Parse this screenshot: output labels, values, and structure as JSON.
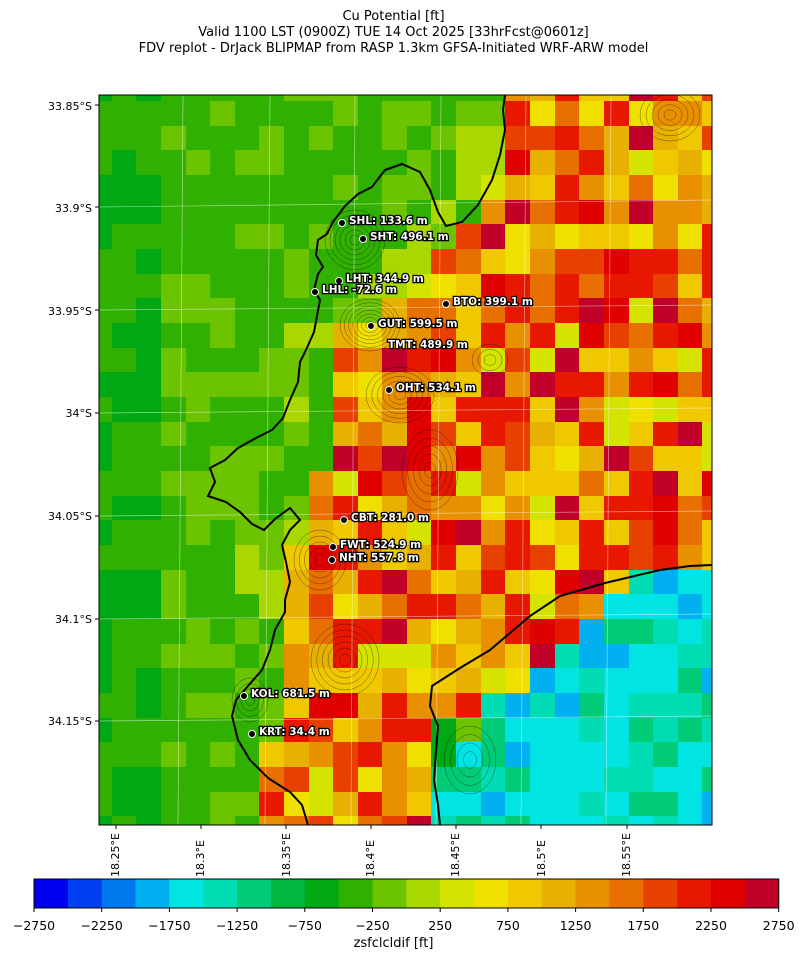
{
  "titles": {
    "line1": "Cu Potential [ft]",
    "line2": "Valid 1100 LST (0900Z) TUE 14 Oct 2025 [33hrFcst@0601z]",
    "line3": "FDV replot - DrJack BLIPMAP from RASP 1.3km GFSA-Initiated WRF-ARW model"
  },
  "map": {
    "lat_labels": [
      "33.85°S",
      "33.9°S",
      "33.95°S",
      "34°S",
      "34.05°S",
      "34.1°S",
      "34.15°S"
    ],
    "lon_labels": [
      "18.25°E",
      "18.3°E",
      "18.35°E",
      "18.4°E",
      "18.45°E",
      "18.5°E",
      "18.55°E"
    ],
    "stations": [
      {
        "code": "SHL",
        "label": "SHL: 133.6 m"
      },
      {
        "code": "SHT",
        "label": "SHT: 496.1 m"
      },
      {
        "code": "LHT",
        "label": "LHT: 344.9 m"
      },
      {
        "code": "LHL",
        "label": "LHL: -72.6 m"
      },
      {
        "code": "BTO",
        "label": "BTO: 399.1 m"
      },
      {
        "code": "GUT",
        "label": "GUT: 599.5 m"
      },
      {
        "code": "TMT",
        "label": "TMT: 489.9 m"
      },
      {
        "code": "OHT",
        "label": "OHT: 534.1 m"
      },
      {
        "code": "CBT",
        "label": "CBT: 281.0 m"
      },
      {
        "code": "FWT",
        "label": "FWT: 524.9 m"
      },
      {
        "code": "NHT",
        "label": "NHT: 557.8 m"
      },
      {
        "code": "KOL",
        "label": "KOL: 681.5 m"
      },
      {
        "code": "KRT",
        "label": "KRT: 34.4 m"
      }
    ]
  },
  "colorbar": {
    "label": "zsfclcldif [ft]",
    "ticks": [
      "−2750",
      "−2250",
      "−1750",
      "−1250",
      "−750",
      "−250",
      "250",
      "750",
      "1250",
      "1750",
      "2250",
      "2750"
    ],
    "colors": [
      "#0000f0",
      "#0040f0",
      "#0078f0",
      "#00b0f0",
      "#00e4e4",
      "#00dcb4",
      "#00cc78",
      "#00b840",
      "#00a814",
      "#30b000",
      "#6cc400",
      "#a8d800",
      "#d4e400",
      "#f0e000",
      "#f0c800",
      "#e8b000",
      "#e89000",
      "#e87000",
      "#e84000",
      "#e81800",
      "#e00000",
      "#c00028"
    ]
  }
}
